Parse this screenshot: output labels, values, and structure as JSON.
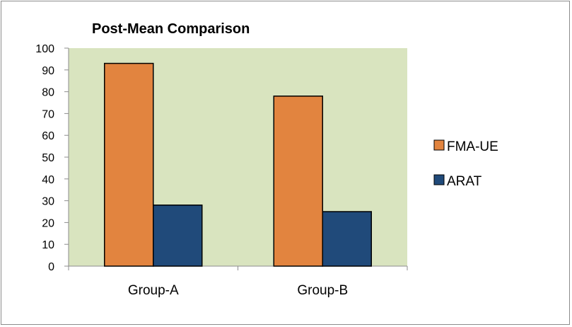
{
  "chart_data": {
    "type": "bar",
    "title": "Post-Mean Comparison",
    "categories": [
      "Group-A",
      "Group-B"
    ],
    "series": [
      {
        "name": "FMA-UE",
        "values": [
          93,
          78
        ],
        "color": "#e2843f"
      },
      {
        "name": "ARAT",
        "values": [
          28,
          25
        ],
        "color": "#204a7a"
      }
    ],
    "ylim": [
      0,
      100
    ],
    "yticks": [
      0,
      10,
      20,
      30,
      40,
      50,
      60,
      70,
      80,
      90,
      100
    ],
    "plot_background": "#d9e4bf",
    "grid": false,
    "legend": "right"
  }
}
